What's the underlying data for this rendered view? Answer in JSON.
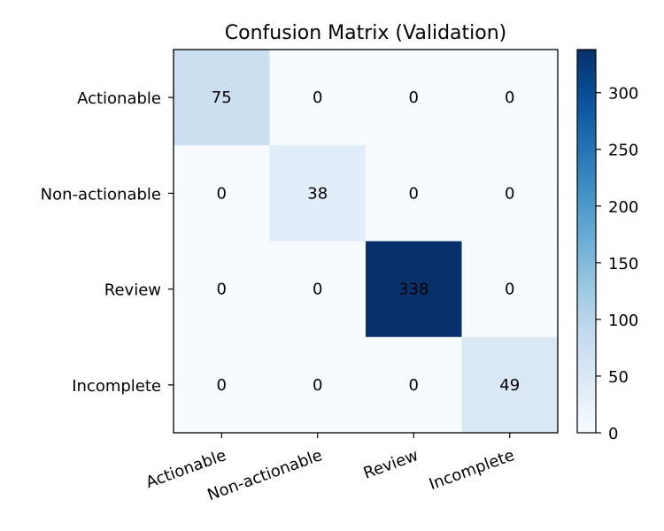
{
  "chart_data": {
    "type": "heatmap",
    "title": "Confusion Matrix (Validation)",
    "xlabel": "",
    "ylabel": "",
    "row_labels": [
      "Actionable",
      "Non-actionable",
      "Review",
      "Incomplete"
    ],
    "col_labels": [
      "Actionable",
      "Non-actionable",
      "Review",
      "Incomplete"
    ],
    "values": [
      [
        75,
        0,
        0,
        0
      ],
      [
        0,
        38,
        0,
        0
      ],
      [
        0,
        0,
        338,
        0
      ],
      [
        0,
        0,
        0,
        49
      ]
    ],
    "colormap": "Blues",
    "colorbar": {
      "range": [
        0,
        338
      ],
      "ticks": [
        0,
        50,
        100,
        150,
        200,
        250,
        300
      ]
    },
    "colors": {
      "low": "#f7fbff",
      "high": "#08306b",
      "text_dark": "#000000",
      "text_light": "#ffffff"
    },
    "grid": false
  }
}
